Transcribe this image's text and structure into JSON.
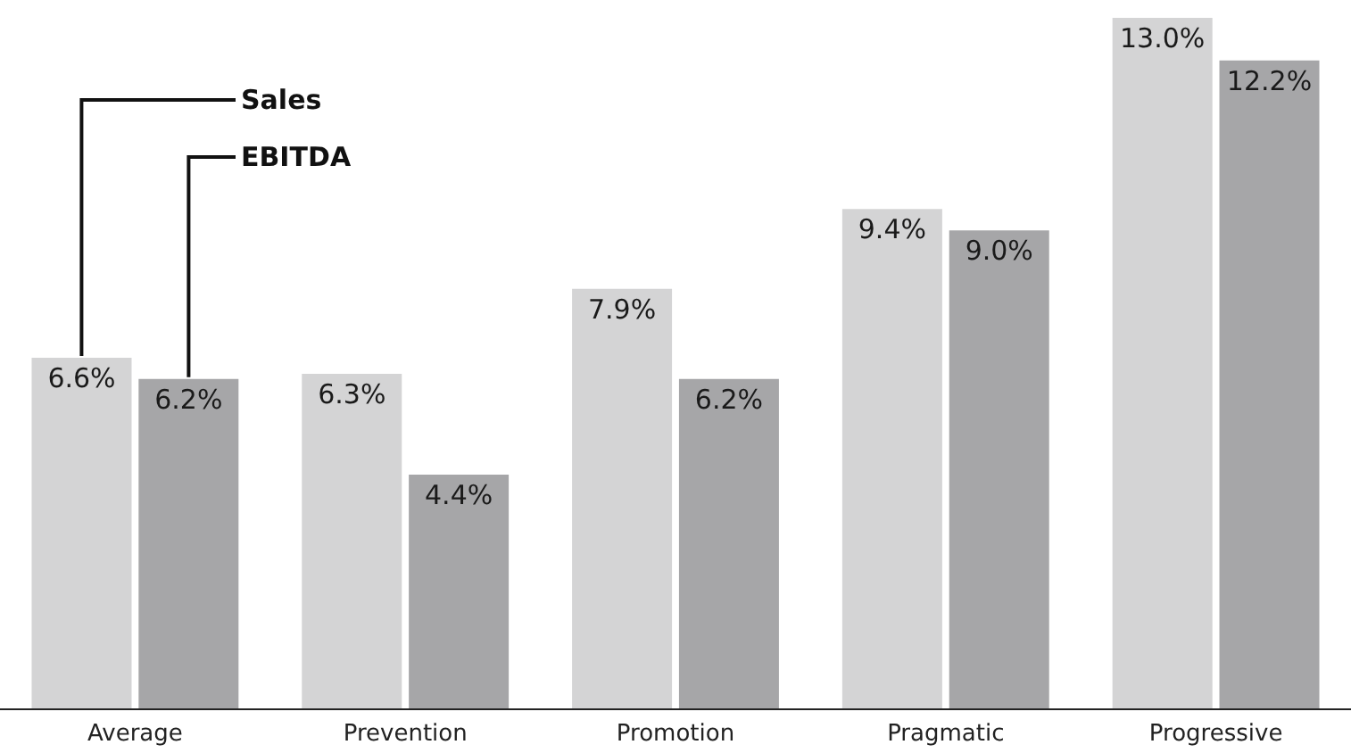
{
  "chart_data": {
    "type": "bar",
    "categories": [
      "Average",
      "Prevention",
      "Promotion",
      "Pragmatic",
      "Progressive"
    ],
    "series": [
      {
        "name": "Sales",
        "color": "#d4d4d5",
        "values": [
          6.6,
          6.3,
          7.9,
          9.4,
          13.0
        ],
        "value_labels": [
          "6.6%",
          "6.3%",
          "7.9%",
          "9.4%",
          "13.0%"
        ]
      },
      {
        "name": "EBITDA",
        "color": "#a6a6a8",
        "values": [
          6.2,
          4.4,
          6.2,
          9.0,
          12.2
        ],
        "value_labels": [
          "6.2%",
          "4.4%",
          "6.2%",
          "9.0%",
          "12.2%"
        ]
      }
    ],
    "legend": false,
    "grid": false,
    "tick_labels": "x"
  }
}
